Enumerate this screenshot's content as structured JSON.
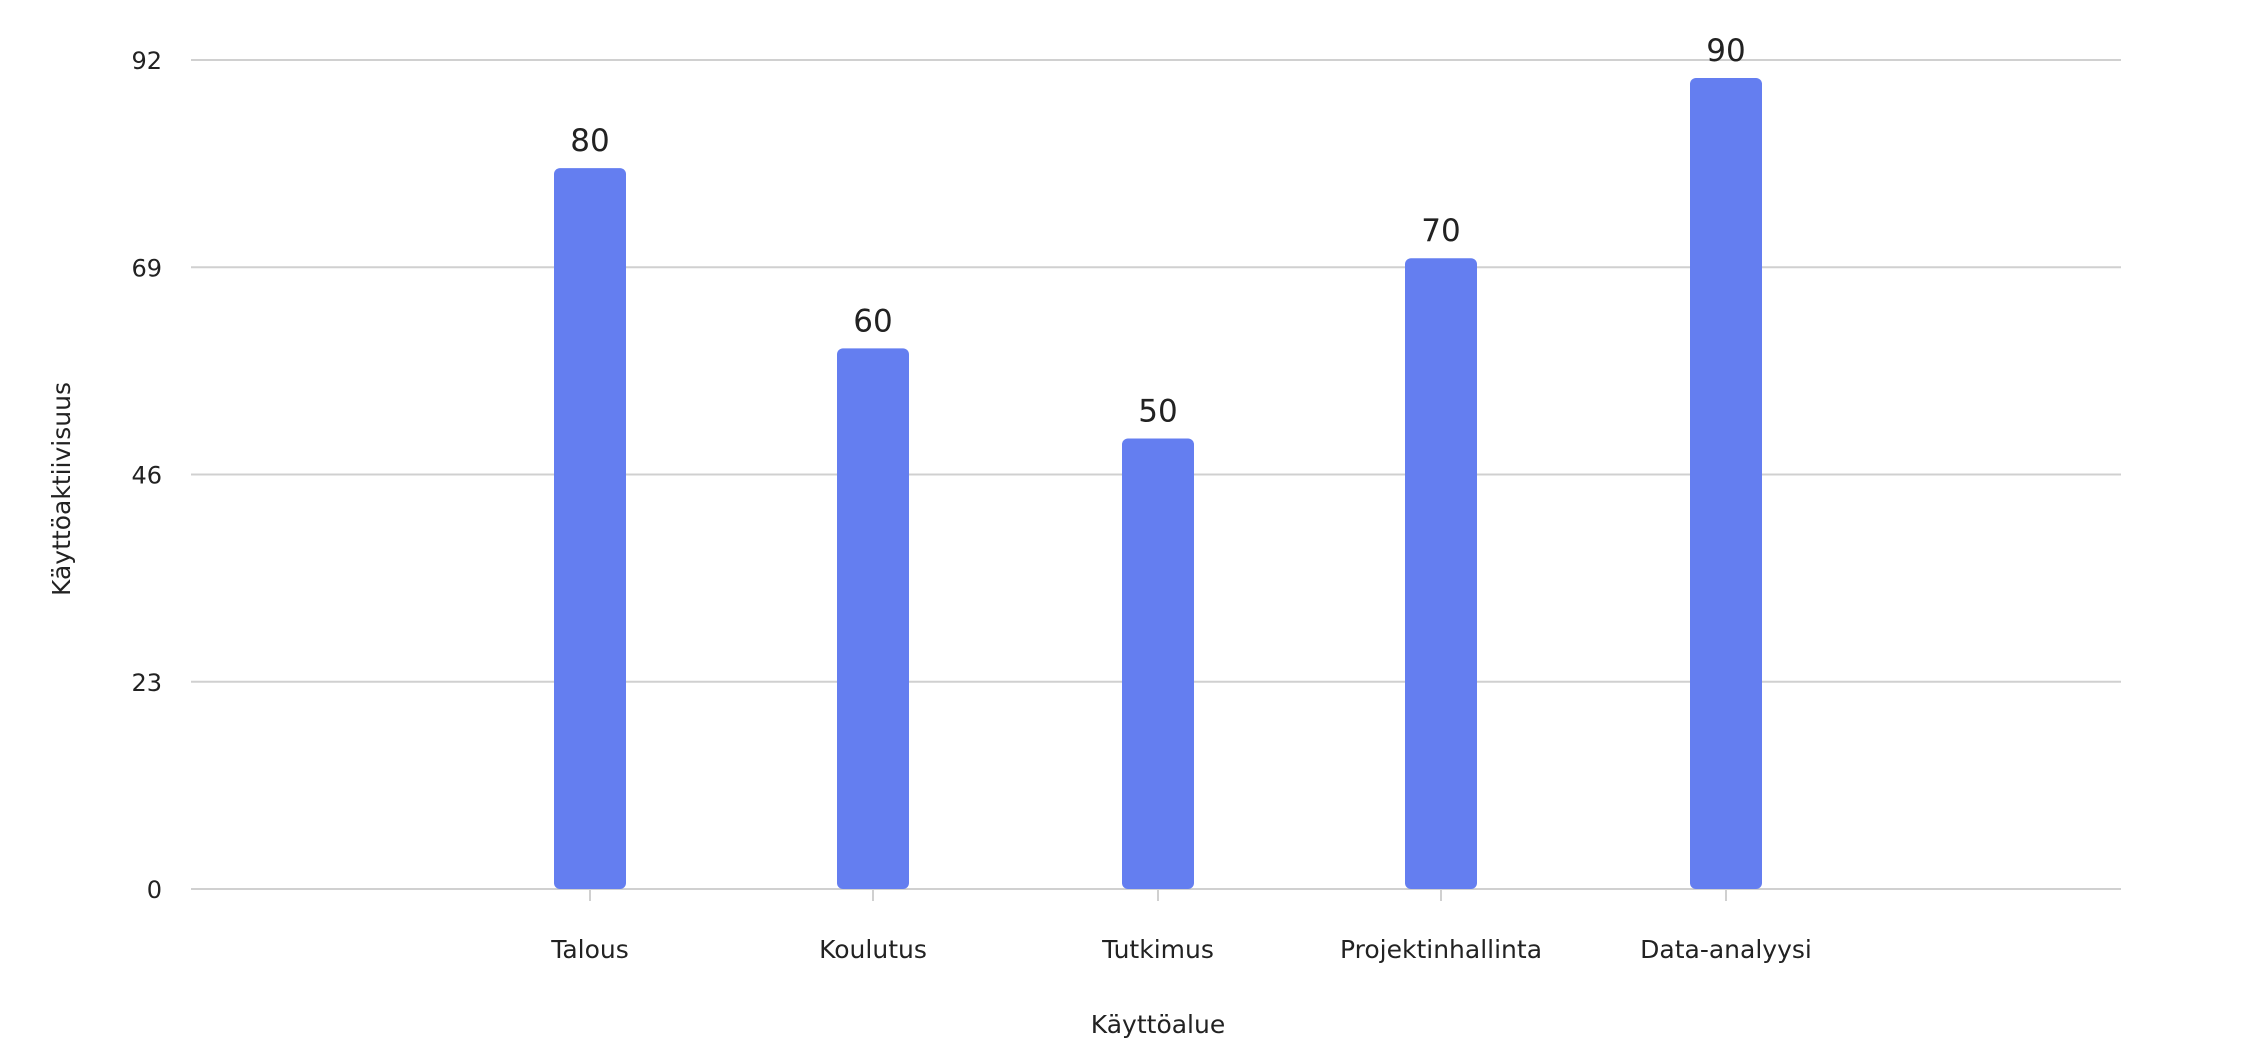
{
  "chart_data": {
    "type": "bar",
    "title": "",
    "xlabel": "Käyttöalue",
    "ylabel": "Käyttöaktiivisuus",
    "categories": [
      "Talous",
      "Koulutus",
      "Tutkimus",
      "Projektinhallinta",
      "Data-analyysi"
    ],
    "values": [
      80,
      60,
      50,
      70,
      90
    ],
    "ylim": [
      0,
      92
    ],
    "yticks": [
      0,
      23,
      46,
      69,
      92
    ],
    "grid": true,
    "data_labels": true,
    "colors": {
      "bar": "#647ef0",
      "grid": "#d0d0d0"
    }
  }
}
